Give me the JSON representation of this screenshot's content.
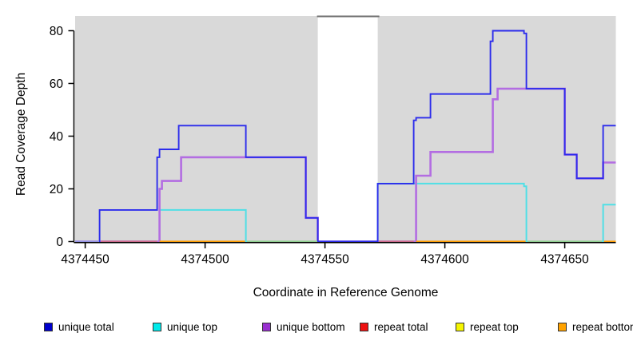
{
  "chart_data": {
    "type": "step-line",
    "title": "",
    "xlabel": "Coordinate in Reference Genome",
    "ylabel": "Read Coverage Depth",
    "xlim": [
      4374445.8,
      4374671.3
    ],
    "ylim": [
      0,
      85.6
    ],
    "xticks": [
      4374450,
      4374500,
      4374550,
      4374600,
      4374650
    ],
    "yticks": [
      0,
      20,
      40,
      60,
      80
    ],
    "grid": false,
    "plot_bg": "#d9d9d9",
    "axis_color": "#000000",
    "mask_band": {
      "x0": 4374547,
      "x1": 4374572,
      "color": "#ffffff",
      "top_edge_color": "#6e6e6e"
    },
    "series": [
      {
        "name": "unique total",
        "color": "#2c2cec",
        "width": 1.9,
        "z": 3,
        "points": [
          [
            4374445.8,
            0
          ],
          [
            4374456,
            12
          ],
          [
            4374480,
            32
          ],
          [
            4374481,
            35
          ],
          [
            4374489,
            44
          ],
          [
            4374517,
            32
          ],
          [
            4374542,
            9
          ],
          [
            4374547,
            0
          ],
          [
            4374572,
            22
          ],
          [
            4374587,
            46
          ],
          [
            4374588,
            47
          ],
          [
            4374594,
            56
          ],
          [
            4374619,
            76
          ],
          [
            4374620,
            80
          ],
          [
            4374633,
            79
          ],
          [
            4374634,
            58
          ],
          [
            4374650,
            33
          ],
          [
            4374655,
            24
          ],
          [
            4374666,
            44
          ]
        ]
      },
      {
        "name": "unique top",
        "color": "#4fdfe6",
        "width": 2.0,
        "z": 1,
        "points": [
          [
            4374445.8,
            0
          ],
          [
            4374481,
            12
          ],
          [
            4374517,
            0
          ],
          [
            4374572,
            22
          ],
          [
            4374633,
            21
          ],
          [
            4374634,
            0
          ],
          [
            4374666,
            14
          ]
        ]
      },
      {
        "name": "unique bottom",
        "color": "#b36de2",
        "width": 2.6,
        "z": 2,
        "points": [
          [
            4374445.8,
            0
          ],
          [
            4374481,
            20
          ],
          [
            4374482,
            23
          ],
          [
            4374490,
            32
          ],
          [
            4374542,
            9
          ],
          [
            4374547,
            0
          ],
          [
            4374588,
            25
          ],
          [
            4374594,
            34
          ],
          [
            4374620,
            54
          ],
          [
            4374622,
            58
          ],
          [
            4374650,
            33
          ],
          [
            4374655,
            24
          ],
          [
            4374666,
            30
          ]
        ]
      },
      {
        "name": "repeat total",
        "color": "#ee2222",
        "width": 2.0,
        "z": 0,
        "points": [
          [
            4374445.8,
            0
          ]
        ]
      },
      {
        "name": "repeat top",
        "color": "#f0f000",
        "width": 2.0,
        "z": 0,
        "points": [
          [
            4374445.8,
            0
          ]
        ]
      },
      {
        "name": "repeat bottom",
        "color": "#ff9d00",
        "width": 2.0,
        "z": 0,
        "points": [
          [
            4374445.8,
            0
          ]
        ]
      }
    ],
    "baseline_segments": [
      {
        "x0": 4374445.8,
        "x1": 4374455.8,
        "color": "#9292e2"
      },
      {
        "x0": 4374456.5,
        "x1": 4374480.0,
        "color": "#cd6a8a"
      },
      {
        "x0": 4374481.0,
        "x1": 4374516.5,
        "color": "#ff9d00"
      },
      {
        "x0": 4374517.5,
        "x1": 4374546.8,
        "color": "#8ecf8e"
      },
      {
        "x0": 4374547.0,
        "x1": 4374572.0,
        "color": "#2c2cec"
      },
      {
        "x0": 4374572.5,
        "x1": 4374587.0,
        "color": "#cd6a8a"
      },
      {
        "x0": 4374588.0,
        "x1": 4374633.5,
        "color": "#ff9d00"
      },
      {
        "x0": 4374634.5,
        "x1": 4374665.5,
        "color": "#8ecf8e"
      },
      {
        "x0": 4374666.5,
        "x1": 4374671.3,
        "color": "#ff9d00"
      }
    ]
  },
  "legend": {
    "items": [
      {
        "label": "unique total",
        "swatch": "#0000cc"
      },
      {
        "label": "unique top",
        "swatch": "#00eaea"
      },
      {
        "label": "unique bottom",
        "swatch": "#9930d0"
      },
      {
        "label": "repeat total",
        "swatch": "#ee1111"
      },
      {
        "label": "repeat top",
        "swatch": "#f5f500"
      },
      {
        "label": "repeat bottom",
        "swatch": "#ffa200"
      }
    ]
  }
}
